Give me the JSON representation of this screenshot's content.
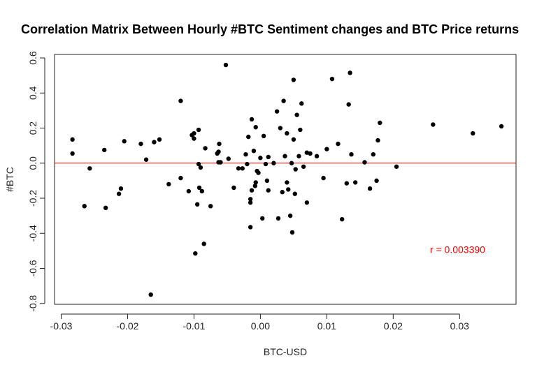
{
  "chart_data": {
    "type": "scatter",
    "title": "Correlation Matrix Between Hourly #BTC Sentiment changes and BTC Price returns",
    "xlabel": "BTC-USD",
    "ylabel": "#BTC",
    "xlim": [
      -0.031,
      0.0385
    ],
    "ylim": [
      -0.805,
      0.62
    ],
    "x_ticks": [
      -0.03,
      -0.02,
      -0.01,
      0.0,
      0.01,
      0.02,
      0.03
    ],
    "x_tick_labels": [
      "-0.03",
      "-0.02",
      "-0.01",
      "0.00",
      "0.01",
      "0.02",
      "0.03"
    ],
    "y_ticks": [
      -0.8,
      -0.6,
      -0.4,
      -0.2,
      0.0,
      0.2,
      0.4,
      0.6
    ],
    "y_tick_labels": [
      "-0.8",
      "-0.6",
      "-0.4",
      "-0.2",
      "0.0",
      "0.2",
      "0.4",
      "0.6"
    ],
    "grid": false,
    "reference_line": {
      "y": 0.0,
      "color": "#ff0000"
    },
    "annotation": {
      "text": "r = 0.003390",
      "x": 0.0297,
      "y": -0.513,
      "color": "#ff0000"
    },
    "point_color": "#000000",
    "points": [
      [
        -0.0283,
        0.135
      ],
      [
        -0.0283,
        0.055
      ],
      [
        -0.0265,
        -0.245
      ],
      [
        -0.0257,
        -0.03
      ],
      [
        -0.0235,
        0.075
      ],
      [
        -0.0233,
        -0.255
      ],
      [
        -0.0213,
        -0.175
      ],
      [
        -0.021,
        -0.145
      ],
      [
        -0.0205,
        0.125
      ],
      [
        -0.018,
        0.11
      ],
      [
        -0.0172,
        0.02
      ],
      [
        -0.0165,
        -0.75
      ],
      [
        -0.016,
        0.12
      ],
      [
        -0.0152,
        0.135
      ],
      [
        -0.0138,
        -0.12
      ],
      [
        -0.012,
        0.355
      ],
      [
        -0.012,
        -0.085
      ],
      [
        -0.0108,
        -0.16
      ],
      [
        -0.0103,
        0.16
      ],
      [
        -0.01,
        0.17
      ],
      [
        -0.01,
        0.14
      ],
      [
        -0.0098,
        -0.515
      ],
      [
        -0.0095,
        -0.235
      ],
      [
        -0.0093,
        0.19
      ],
      [
        -0.0093,
        -0.005
      ],
      [
        -0.0092,
        -0.14
      ],
      [
        -0.009,
        -0.025
      ],
      [
        -0.0088,
        -0.16
      ],
      [
        -0.0085,
        -0.46
      ],
      [
        -0.0083,
        0.085
      ],
      [
        -0.0075,
        -0.245
      ],
      [
        -0.0065,
        0.055
      ],
      [
        -0.0063,
        0.065
      ],
      [
        -0.0063,
        0.005
      ],
      [
        -0.0062,
        0.11
      ],
      [
        -0.006,
        0.005
      ],
      [
        -0.0052,
        0.56
      ],
      [
        -0.0048,
        0.025
      ],
      [
        -0.004,
        -0.14
      ],
      [
        -0.0033,
        -0.03
      ],
      [
        -0.0027,
        -0.03
      ],
      [
        -0.0022,
        0.05
      ],
      [
        -0.002,
        -0.005
      ],
      [
        -0.0018,
        0.15
      ],
      [
        -0.0015,
        -0.365
      ],
      [
        -0.0015,
        -0.225
      ],
      [
        -0.0015,
        -0.205
      ],
      [
        -0.0013,
        0.25
      ],
      [
        -0.0013,
        -0.155
      ],
      [
        -0.001,
        0.07
      ],
      [
        -0.0008,
        -0.13
      ],
      [
        -0.0007,
        0.205
      ],
      [
        -0.0007,
        -0.11
      ],
      [
        -0.0005,
        -0.045
      ],
      [
        -0.0003,
        -0.055
      ],
      [
        0.0,
        0.03
      ],
      [
        0.0003,
        -0.315
      ],
      [
        0.0005,
        0.155
      ],
      [
        0.0008,
        -0.005
      ],
      [
        0.001,
        -0.1
      ],
      [
        0.0012,
        -0.155
      ],
      [
        0.0012,
        0.035
      ],
      [
        0.002,
        0.0
      ],
      [
        0.0025,
        0.295
      ],
      [
        0.0027,
        -0.315
      ],
      [
        0.003,
        0.2
      ],
      [
        0.0033,
        -0.165
      ],
      [
        0.0035,
        0.355
      ],
      [
        0.0037,
        0.04
      ],
      [
        0.004,
        0.17
      ],
      [
        0.004,
        -0.11
      ],
      [
        0.0042,
        -0.15
      ],
      [
        0.0045,
        -0.3
      ],
      [
        0.0047,
        0.0
      ],
      [
        0.0048,
        -0.395
      ],
      [
        0.005,
        0.475
      ],
      [
        0.005,
        0.135
      ],
      [
        0.0052,
        -0.175
      ],
      [
        0.0053,
        -0.035
      ],
      [
        0.0055,
        0.275
      ],
      [
        0.0058,
        0.04
      ],
      [
        0.006,
        0.19
      ],
      [
        0.0062,
        0.34
      ],
      [
        0.0065,
        -0.02
      ],
      [
        0.007,
        0.06
      ],
      [
        0.007,
        -0.225
      ],
      [
        0.0075,
        0.055
      ],
      [
        0.0085,
        0.04
      ],
      [
        0.0095,
        -0.085
      ],
      [
        0.01,
        0.08
      ],
      [
        0.0108,
        0.48
      ],
      [
        0.0117,
        0.11
      ],
      [
        0.0123,
        -0.32
      ],
      [
        0.013,
        -0.115
      ],
      [
        0.0133,
        0.335
      ],
      [
        0.0135,
        0.515
      ],
      [
        0.0137,
        0.05
      ],
      [
        0.0143,
        -0.11
      ],
      [
        0.0157,
        0.005
      ],
      [
        0.0165,
        -0.145
      ],
      [
        0.017,
        0.05
      ],
      [
        0.0175,
        -0.1
      ],
      [
        0.0177,
        0.13
      ],
      [
        0.018,
        0.23
      ],
      [
        0.0205,
        -0.02
      ],
      [
        0.026,
        0.22
      ],
      [
        0.032,
        0.17
      ],
      [
        0.0363,
        0.21
      ]
    ]
  }
}
